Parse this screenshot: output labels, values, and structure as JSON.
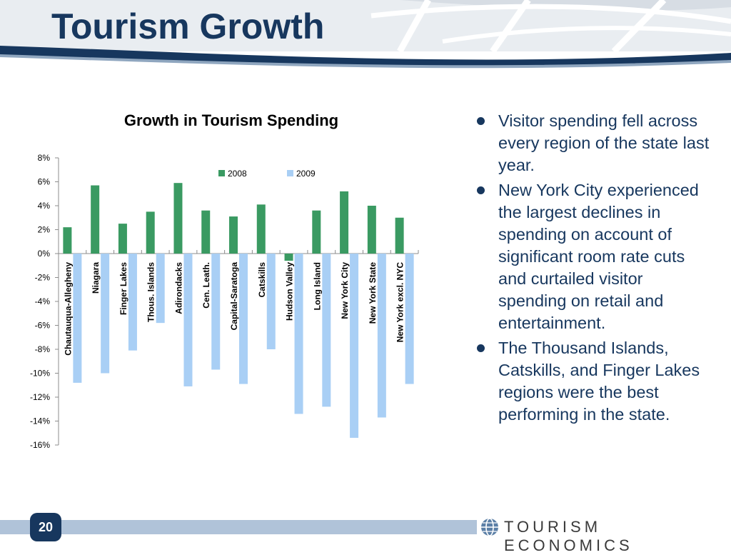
{
  "slide": {
    "title": "Tourism Growth",
    "page_number": "20",
    "logo_text": "TOURISM ECONOMICS"
  },
  "colors": {
    "title": "#17375e",
    "series_2008": "#3a9a62",
    "series_2009": "#a9cff5"
  },
  "bullets": [
    "Visitor spending fell across every region of the state last year.",
    "New York City experienced the largest declines in spending on account of significant room rate cuts and curtailed visitor spending on retail and entertainment.",
    "The Thousand Islands, Catskills, and Finger Lakes regions were the best performing in the state."
  ],
  "chart_data": {
    "type": "bar",
    "title": "Growth in Tourism Spending",
    "categories": [
      "Chautauqua-Allegheny",
      "Niagara",
      "Finger Lakes",
      "Thous. Islands",
      "Adirondacks",
      "Cen. Leath.",
      "Capital-Saratoga",
      "Catskills",
      "Hudson Valley",
      "Long Island",
      "New York City",
      "New York State",
      "New York excl. NYC"
    ],
    "series": [
      {
        "name": "2008",
        "values": [
          2.2,
          5.7,
          2.5,
          3.5,
          5.9,
          3.6,
          3.1,
          4.1,
          -0.6,
          3.6,
          5.2,
          4.0,
          3.0
        ]
      },
      {
        "name": "2009",
        "values": [
          -10.8,
          -10.0,
          -8.1,
          -5.8,
          -11.1,
          -9.7,
          -10.9,
          -8.0,
          -13.4,
          -12.8,
          -15.4,
          -13.7,
          -10.9
        ]
      }
    ],
    "ylim": [
      -16,
      8
    ],
    "yticks": [
      "8%",
      "6%",
      "4%",
      "2%",
      "0%",
      "-2%",
      "-4%",
      "-6%",
      "-8%",
      "-10%",
      "-12%",
      "-14%",
      "-16%"
    ],
    "legend_position": "top-right",
    "grid": false
  }
}
